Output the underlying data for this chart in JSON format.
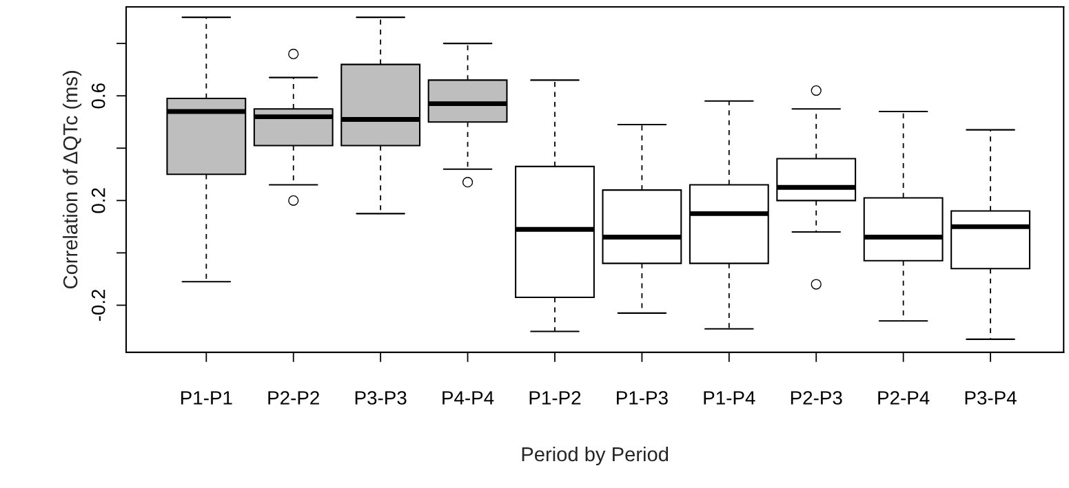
{
  "chart_data": {
    "type": "box",
    "xlabel": "Period by Period",
    "ylabel": "Correlation of ΔQTc (ms)",
    "categories": [
      "P1-P1",
      "P2-P2",
      "P3-P3",
      "P4-P4",
      "P1-P2",
      "P1-P3",
      "P1-P4",
      "P2-P3",
      "P2-P4",
      "P3-P4"
    ],
    "colors": [
      "#bebebe",
      "#bebebe",
      "#bebebe",
      "#bebebe",
      "#ffffff",
      "#ffffff",
      "#ffffff",
      "#ffffff",
      "#ffffff",
      "#ffffff"
    ],
    "boxes": [
      {
        "low": -0.11,
        "q1": 0.3,
        "median": 0.54,
        "q3": 0.59,
        "high": 0.9
      },
      {
        "low": 0.26,
        "q1": 0.41,
        "median": 0.52,
        "q3": 0.55,
        "high": 0.67,
        "outliers": [
          0.76,
          0.2
        ]
      },
      {
        "low": 0.15,
        "q1": 0.41,
        "median": 0.51,
        "q3": 0.72,
        "high": 0.9
      },
      {
        "low": 0.32,
        "q1": 0.5,
        "median": 0.57,
        "q3": 0.66,
        "high": 0.8,
        "outliers": [
          0.27
        ]
      },
      {
        "low": -0.3,
        "q1": -0.17,
        "median": 0.09,
        "q3": 0.33,
        "high": 0.66
      },
      {
        "low": -0.23,
        "q1": -0.04,
        "median": 0.06,
        "q3": 0.24,
        "high": 0.49
      },
      {
        "low": -0.29,
        "q1": -0.04,
        "median": 0.15,
        "q3": 0.26,
        "high": 0.58
      },
      {
        "low": 0.08,
        "q1": 0.2,
        "median": 0.25,
        "q3": 0.36,
        "high": 0.55,
        "outliers": [
          0.62,
          -0.12
        ]
      },
      {
        "low": -0.26,
        "q1": -0.03,
        "median": 0.06,
        "q3": 0.21,
        "high": 0.54
      },
      {
        "low": -0.33,
        "q1": -0.06,
        "median": 0.1,
        "q3": 0.16,
        "high": 0.47
      }
    ],
    "ylim": [
      -0.38,
      0.94
    ],
    "yticks": [
      -0.2,
      {
        "value": 0.0,
        "label": null
      },
      0.2,
      {
        "value": 0.4,
        "label": null
      },
      0.6,
      {
        "value": 0.8,
        "label": null
      }
    ],
    "grid": false
  }
}
